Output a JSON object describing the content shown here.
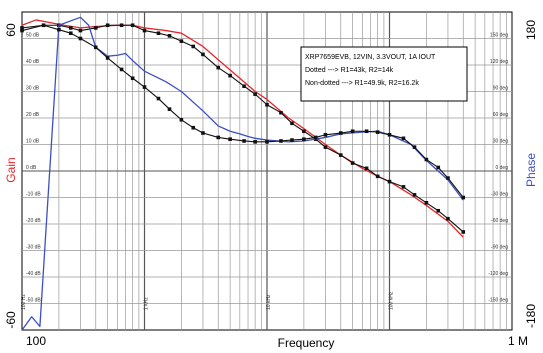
{
  "chart_data": {
    "type": "line",
    "xlabel": "Frequency",
    "ylabel_left": "Gain",
    "ylabel_right": "Phase",
    "x_scale": "log",
    "xlim": [
      100,
      1000000
    ],
    "ylim_left": [
      -60,
      60
    ],
    "ylim_right": [
      -180,
      180
    ],
    "grid": true,
    "x_end_labels": [
      "100",
      "1 M"
    ],
    "y_end_labels_left": [
      "60",
      "-60"
    ],
    "y_end_labels_right": [
      "180",
      "-180"
    ],
    "x_tick_labels": [
      {
        "x": 100,
        "label": "100 Hz"
      },
      {
        "x": 1000,
        "label": "1 kHz"
      },
      {
        "x": 10000,
        "label": "10 kHz"
      },
      {
        "x": 100000,
        "label": "100 kHz"
      }
    ],
    "y_tick_labels_left": [
      {
        "y": 50,
        "label": "50 dB"
      },
      {
        "y": 40,
        "label": "40 dB"
      },
      {
        "y": 30,
        "label": "30 dB"
      },
      {
        "y": 20,
        "label": "20 dB"
      },
      {
        "y": 10,
        "label": "10 dB"
      },
      {
        "y": 0,
        "label": "0 dB"
      },
      {
        "y": -10,
        "label": "-10 dB"
      },
      {
        "y": -20,
        "label": "-20 dB"
      },
      {
        "y": -30,
        "label": "-30 dB"
      },
      {
        "y": -40,
        "label": "-40 dB"
      },
      {
        "y": -50,
        "label": "-50 dB"
      }
    ],
    "y_tick_labels_right": [
      {
        "y": 150,
        "label": "150 deg"
      },
      {
        "y": 120,
        "label": "120 deg"
      },
      {
        "y": 90,
        "label": "90 deg"
      },
      {
        "y": 60,
        "label": "60 deg"
      },
      {
        "y": 30,
        "label": "30 deg"
      },
      {
        "y": 0,
        "label": "0 deg"
      },
      {
        "y": -30,
        "label": "-30 deg"
      },
      {
        "y": -60,
        "label": "-60 deg"
      },
      {
        "y": -90,
        "label": "-90 deg"
      },
      {
        "y": -120,
        "label": "-120 deg"
      },
      {
        "y": -150,
        "label": "-150 deg"
      }
    ],
    "legend_text": [
      "XRP7659EVB, 12VIN, 3.3VOUT, 1A IOUT",
      "Dotted ---> R1=43k, R2=14k",
      "Non-dotted ---> R1=49.9k, R2=16.2k"
    ],
    "legend_position": "top-right",
    "series": [
      {
        "axis": "left",
        "color": "#e8262a",
        "markers": false,
        "points": [
          [
            100,
            55
          ],
          [
            130,
            57
          ],
          [
            170,
            56
          ],
          [
            220,
            55
          ],
          [
            300,
            54
          ],
          [
            400,
            54.5
          ],
          [
            600,
            55
          ],
          [
            800,
            55
          ],
          [
            1000,
            54
          ],
          [
            1500,
            53
          ],
          [
            2000,
            52
          ],
          [
            3000,
            47
          ],
          [
            4000,
            42
          ],
          [
            6000,
            35
          ],
          [
            8000,
            30
          ],
          [
            10000,
            27
          ],
          [
            15000,
            20
          ],
          [
            20000,
            16
          ],
          [
            30000,
            10
          ],
          [
            40000,
            6
          ],
          [
            60000,
            1
          ],
          [
            80000,
            -2
          ],
          [
            100000,
            -4
          ],
          [
            150000,
            -9
          ],
          [
            200000,
            -13
          ],
          [
            300000,
            -19
          ],
          [
            400000,
            -25
          ]
        ]
      },
      {
        "axis": "left",
        "color": "#111111",
        "markers": true,
        "points": [
          [
            100,
            53
          ],
          [
            150,
            55
          ],
          [
            200,
            55
          ],
          [
            250,
            54
          ],
          [
            300,
            53
          ],
          [
            400,
            54
          ],
          [
            500,
            55
          ],
          [
            650,
            55
          ],
          [
            800,
            55
          ],
          [
            1000,
            53
          ],
          [
            1300,
            52
          ],
          [
            1600,
            51
          ],
          [
            2000,
            49
          ],
          [
            2500,
            47
          ],
          [
            3000,
            44
          ],
          [
            4000,
            39
          ],
          [
            5000,
            36
          ],
          [
            6500,
            32
          ],
          [
            8000,
            29
          ],
          [
            10000,
            25
          ],
          [
            13000,
            22
          ],
          [
            16000,
            18
          ],
          [
            20000,
            15
          ],
          [
            25000,
            12
          ],
          [
            30000,
            9
          ],
          [
            40000,
            6
          ],
          [
            50000,
            3
          ],
          [
            65000,
            1
          ],
          [
            80000,
            -2
          ],
          [
            100000,
            -4
          ],
          [
            130000,
            -6
          ],
          [
            160000,
            -9
          ],
          [
            200000,
            -12
          ],
          [
            250000,
            -15
          ],
          [
            300000,
            -18
          ],
          [
            400000,
            -23
          ]
        ]
      },
      {
        "axis": "right",
        "color": "#3c4fc4",
        "markers": false,
        "points": [
          [
            100,
            -180
          ],
          [
            120,
            -165
          ],
          [
            140,
            -176
          ],
          [
            200,
            165
          ],
          [
            300,
            174
          ],
          [
            350,
            165
          ],
          [
            400,
            140
          ],
          [
            500,
            130
          ],
          [
            600,
            131
          ],
          [
            700,
            133
          ],
          [
            800,
            125
          ],
          [
            1000,
            113
          ],
          [
            1500,
            101
          ],
          [
            2000,
            90
          ],
          [
            3000,
            68
          ],
          [
            4000,
            51
          ],
          [
            5000,
            45
          ],
          [
            6000,
            42
          ],
          [
            7000,
            39
          ],
          [
            8000,
            37
          ],
          [
            10000,
            35
          ],
          [
            15000,
            33
          ],
          [
            20000,
            34
          ],
          [
            30000,
            38
          ],
          [
            40000,
            42
          ],
          [
            60000,
            44
          ],
          [
            80000,
            45
          ],
          [
            100000,
            41
          ],
          [
            150000,
            30
          ],
          [
            200000,
            12
          ],
          [
            300000,
            -10
          ],
          [
            400000,
            -33
          ]
        ]
      },
      {
        "axis": "right",
        "color": "#111111",
        "markers": true,
        "points": [
          [
            100,
            162
          ],
          [
            150,
            165
          ],
          [
            200,
            160
          ],
          [
            250,
            156
          ],
          [
            300,
            150
          ],
          [
            400,
            140
          ],
          [
            500,
            128
          ],
          [
            650,
            115
          ],
          [
            800,
            105
          ],
          [
            1000,
            95
          ],
          [
            1300,
            82
          ],
          [
            1600,
            70
          ],
          [
            2000,
            58
          ],
          [
            2500,
            49
          ],
          [
            3000,
            43
          ],
          [
            4000,
            38
          ],
          [
            5000,
            36
          ],
          [
            6500,
            34
          ],
          [
            8000,
            33
          ],
          [
            10000,
            33
          ],
          [
            13000,
            34
          ],
          [
            16000,
            35
          ],
          [
            20000,
            36
          ],
          [
            25000,
            38
          ],
          [
            30000,
            41
          ],
          [
            40000,
            43
          ],
          [
            50000,
            45
          ],
          [
            65000,
            45
          ],
          [
            80000,
            44
          ],
          [
            100000,
            41
          ],
          [
            130000,
            37
          ],
          [
            160000,
            27
          ],
          [
            200000,
            13
          ],
          [
            250000,
            4
          ],
          [
            300000,
            -8
          ],
          [
            400000,
            -30
          ]
        ]
      }
    ]
  }
}
